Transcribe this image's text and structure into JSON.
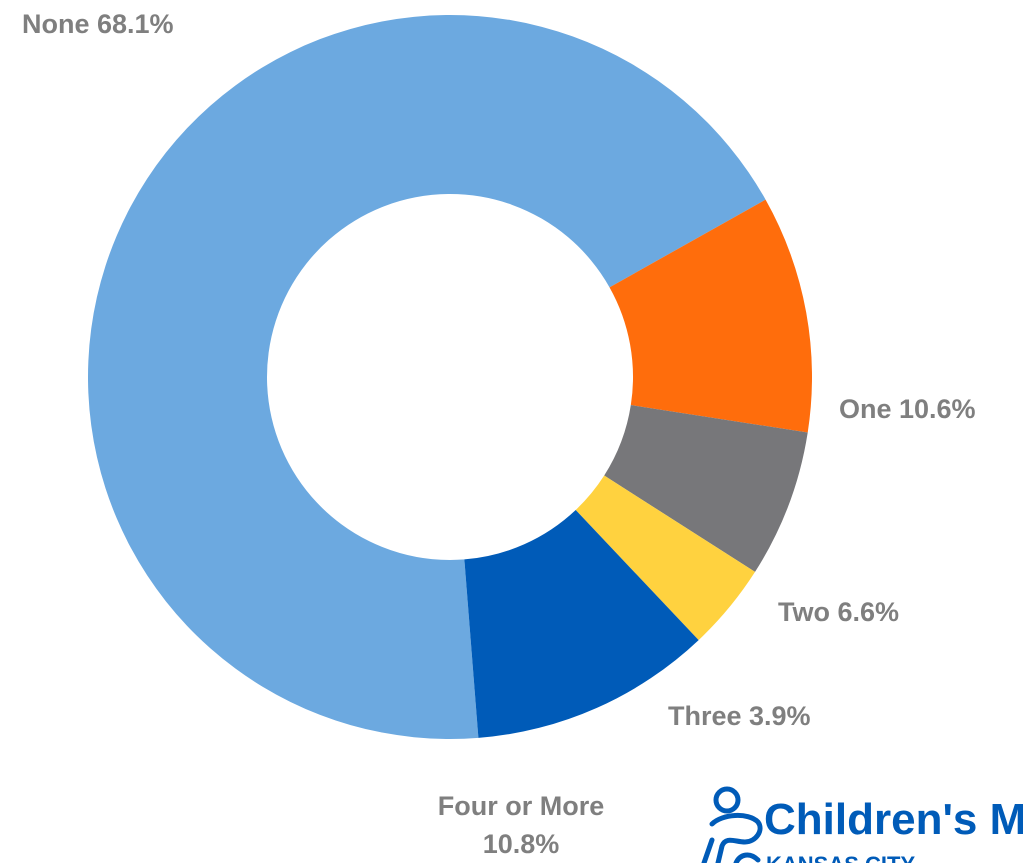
{
  "chart_data": {
    "type": "pie",
    "variant": "donut",
    "slices": [
      {
        "category": "None",
        "value": 68.1,
        "label": "None 68.1%",
        "color": "#6CA9E0"
      },
      {
        "category": "One",
        "value": 10.6,
        "label": "One 10.6%",
        "color": "#FF6D0C"
      },
      {
        "category": "Two",
        "value": 6.6,
        "label": "Two 6.6%",
        "color": "#77777A"
      },
      {
        "category": "Three",
        "value": 3.9,
        "label": "Three 3.9%",
        "color": "#FFD23F"
      },
      {
        "category": "Four or More",
        "value": 10.8,
        "label_lines": [
          "Four or More",
          "10.8%"
        ],
        "color": "#005BB8"
      }
    ],
    "label_color": "#7F7F7F",
    "legend": "none"
  },
  "logo": {
    "name_text": "Children's M",
    "location_text": "KANSAS CITY",
    "color": "#005BB8",
    "icon": "children-figure-icon"
  }
}
